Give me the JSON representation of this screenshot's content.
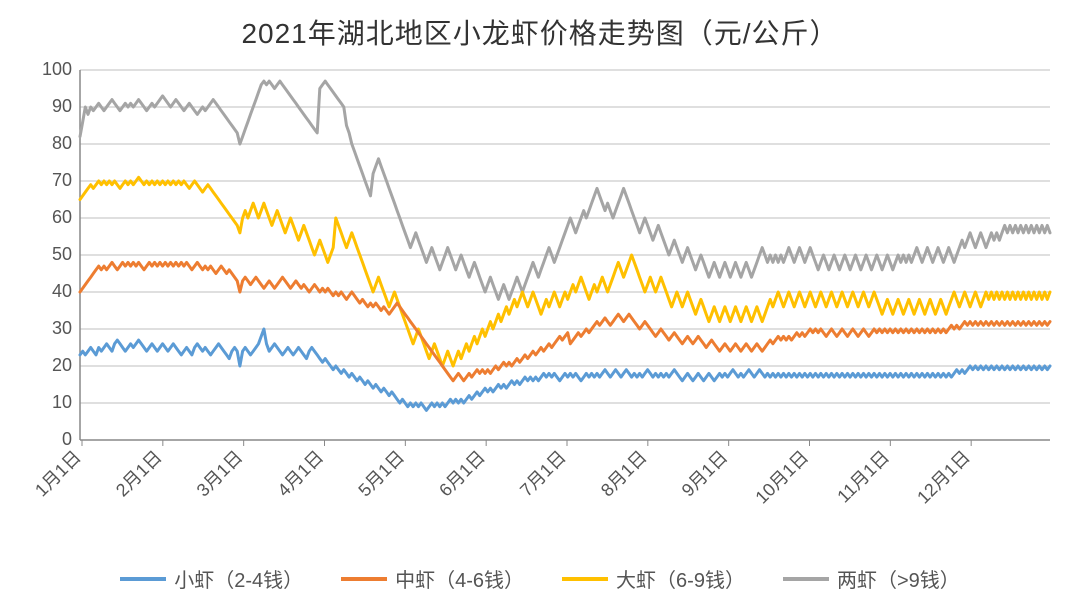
{
  "title": "2021年湖北地区小龙虾价格走势图（元/公斤）",
  "title_fontsize": 28,
  "background_color": "#ffffff",
  "grid_color": "#bfbfbf",
  "axis_color": "#888888",
  "text_color": "#555555",
  "ylim": [
    0,
    100
  ],
  "ytick_step": 10,
  "yticks": [
    0,
    10,
    20,
    30,
    40,
    50,
    60,
    70,
    80,
    90,
    100
  ],
  "x_labels": [
    "1月1日",
    "2月1日",
    "3月1日",
    "4月1日",
    "5月1日",
    "6月1日",
    "7月1日",
    "8月1日",
    "9月1日",
    "10月1日",
    "11月1日",
    "12月1日"
  ],
  "x_label_rotation_deg": 45,
  "line_width": 3,
  "legend": [
    {
      "label": "小虾（2-4钱）",
      "color": "#5b9bd5"
    },
    {
      "label": "中虾（4-6钱）",
      "color": "#ed7d31"
    },
    {
      "label": "大虾（6-9钱）",
      "color": "#ffc000"
    },
    {
      "label": "两虾（>9钱）",
      "color": "#a5a5a5"
    }
  ],
  "series": {
    "small": {
      "name": "小虾（2-4钱）",
      "color": "#5b9bd5",
      "values": [
        23,
        24,
        23,
        24,
        25,
        24,
        23,
        25,
        24,
        25,
        26,
        25,
        24,
        26,
        27,
        26,
        25,
        24,
        25,
        26,
        25,
        26,
        27,
        26,
        25,
        24,
        25,
        26,
        25,
        24,
        25,
        26,
        25,
        24,
        25,
        26,
        25,
        24,
        23,
        24,
        25,
        24,
        23,
        25,
        26,
        25,
        24,
        25,
        24,
        23,
        24,
        25,
        26,
        25,
        24,
        23,
        22,
        24,
        25,
        24,
        20,
        24,
        25,
        24,
        23,
        24,
        25,
        26,
        28,
        30,
        26,
        24,
        25,
        26,
        25,
        24,
        23,
        24,
        25,
        24,
        23,
        24,
        25,
        24,
        23,
        22,
        24,
        25,
        24,
        23,
        22,
        21,
        22,
        21,
        20,
        19,
        20,
        19,
        18,
        19,
        18,
        17,
        18,
        17,
        16,
        17,
        16,
        15,
        16,
        15,
        14,
        15,
        14,
        13,
        14,
        13,
        12,
        13,
        12,
        11,
        10,
        11,
        10,
        9,
        10,
        9,
        10,
        9,
        10,
        9,
        8,
        9,
        10,
        9,
        10,
        9,
        10,
        9,
        10,
        11,
        10,
        11,
        10,
        11,
        10,
        11,
        12,
        11,
        12,
        13,
        12,
        13,
        14,
        13,
        14,
        13,
        14,
        15,
        14,
        15,
        14,
        15,
        16,
        15,
        16,
        15,
        16,
        17,
        16,
        17,
        16,
        17,
        16,
        17,
        18,
        17,
        18,
        17,
        18,
        17,
        16,
        17,
        18,
        17,
        18,
        17,
        18,
        17,
        16,
        17,
        18,
        17,
        18,
        17,
        18,
        17,
        18,
        19,
        18,
        17,
        18,
        19,
        18,
        17,
        18,
        19,
        18,
        17,
        18,
        17,
        18,
        17,
        18,
        19,
        18,
        17,
        18,
        17,
        18,
        17,
        18,
        17,
        18,
        19,
        18,
        17,
        16,
        17,
        18,
        17,
        16,
        17,
        18,
        17,
        16,
        17,
        18,
        17,
        16,
        17,
        18,
        17,
        18,
        17,
        18,
        19,
        18,
        17,
        18,
        17,
        18,
        19,
        18,
        17,
        18,
        19,
        18,
        17,
        18,
        17,
        18,
        17,
        18,
        17,
        18,
        17,
        18,
        17,
        18,
        17,
        18,
        17,
        18,
        17,
        18,
        17,
        18,
        17,
        18,
        17,
        18,
        17,
        18,
        17,
        18,
        17,
        18,
        17,
        18,
        17,
        18,
        17,
        18,
        17,
        18,
        17,
        18,
        17,
        18,
        17,
        18,
        17,
        18,
        17,
        18,
        17,
        18,
        17,
        18,
        17,
        18,
        17,
        18,
        17,
        18,
        17,
        18,
        17,
        18,
        17,
        18,
        17,
        18,
        17,
        18,
        17,
        18,
        17,
        18,
        19,
        18,
        19,
        18,
        19,
        20,
        19,
        20,
        19,
        20,
        19,
        20,
        19,
        20,
        19,
        20,
        19,
        20,
        19,
        20,
        19,
        20,
        19,
        20,
        19,
        20,
        19,
        20,
        19,
        20,
        19,
        20,
        19,
        20,
        19,
        20
      ]
    },
    "medium": {
      "name": "中虾（4-6钱）",
      "color": "#ed7d31",
      "values": [
        40,
        41,
        42,
        43,
        44,
        45,
        46,
        47,
        46,
        47,
        46,
        47,
        48,
        47,
        46,
        47,
        48,
        47,
        48,
        47,
        48,
        47,
        48,
        47,
        46,
        47,
        48,
        47,
        48,
        47,
        48,
        47,
        48,
        47,
        48,
        47,
        48,
        47,
        48,
        47,
        48,
        47,
        46,
        47,
        48,
        47,
        46,
        47,
        46,
        47,
        46,
        45,
        46,
        47,
        46,
        45,
        46,
        45,
        44,
        43,
        40,
        43,
        44,
        43,
        42,
        43,
        44,
        43,
        42,
        41,
        42,
        43,
        42,
        41,
        42,
        43,
        44,
        43,
        42,
        41,
        42,
        43,
        42,
        41,
        42,
        41,
        40,
        41,
        42,
        41,
        40,
        41,
        40,
        41,
        40,
        39,
        40,
        39,
        40,
        39,
        38,
        39,
        40,
        39,
        38,
        37,
        38,
        37,
        36,
        37,
        36,
        37,
        36,
        35,
        36,
        35,
        34,
        35,
        36,
        37,
        36,
        35,
        34,
        33,
        32,
        31,
        30,
        29,
        28,
        27,
        26,
        25,
        24,
        23,
        22,
        21,
        20,
        19,
        18,
        17,
        16,
        17,
        18,
        17,
        16,
        17,
        18,
        17,
        18,
        19,
        18,
        19,
        18,
        19,
        18,
        19,
        20,
        19,
        20,
        21,
        20,
        21,
        20,
        21,
        22,
        21,
        22,
        23,
        22,
        23,
        24,
        23,
        24,
        25,
        24,
        25,
        26,
        25,
        26,
        27,
        28,
        27,
        28,
        29,
        26,
        27,
        28,
        29,
        28,
        29,
        30,
        29,
        30,
        31,
        32,
        31,
        32,
        33,
        32,
        31,
        32,
        33,
        34,
        33,
        32,
        33,
        34,
        33,
        32,
        31,
        30,
        31,
        32,
        31,
        30,
        29,
        28,
        29,
        30,
        29,
        28,
        27,
        28,
        29,
        28,
        27,
        26,
        27,
        28,
        27,
        26,
        27,
        28,
        27,
        26,
        25,
        26,
        27,
        26,
        25,
        24,
        25,
        26,
        25,
        24,
        25,
        26,
        25,
        24,
        25,
        26,
        25,
        24,
        25,
        26,
        25,
        24,
        25,
        26,
        27,
        26,
        27,
        28,
        27,
        28,
        27,
        28,
        27,
        28,
        29,
        28,
        29,
        28,
        29,
        30,
        29,
        30,
        29,
        30,
        29,
        28,
        29,
        30,
        29,
        28,
        29,
        30,
        29,
        28,
        29,
        30,
        29,
        28,
        29,
        30,
        29,
        28,
        29,
        30,
        29,
        30,
        29,
        30,
        29,
        30,
        29,
        30,
        29,
        30,
        29,
        30,
        29,
        30,
        29,
        30,
        29,
        30,
        29,
        30,
        29,
        30,
        29,
        30,
        29,
        30,
        29,
        30,
        31,
        30,
        31,
        30,
        31,
        32,
        31,
        32,
        31,
        32,
        31,
        32,
        31,
        32,
        31,
        32,
        31,
        32,
        31,
        32,
        31,
        32,
        31,
        32,
        31,
        32,
        31,
        32,
        31,
        32,
        31,
        32,
        31,
        32,
        31,
        32,
        31,
        32
      ]
    },
    "large": {
      "name": "大虾（6-9钱）",
      "color": "#ffc000",
      "values": [
        65,
        66,
        67,
        68,
        69,
        68,
        69,
        70,
        69,
        70,
        69,
        70,
        69,
        70,
        69,
        68,
        69,
        70,
        69,
        70,
        69,
        70,
        71,
        70,
        69,
        70,
        69,
        70,
        69,
        70,
        69,
        70,
        69,
        70,
        69,
        70,
        69,
        70,
        69,
        70,
        69,
        68,
        69,
        70,
        69,
        68,
        67,
        68,
        69,
        68,
        67,
        66,
        65,
        64,
        63,
        62,
        61,
        60,
        59,
        58,
        56,
        60,
        62,
        60,
        62,
        64,
        62,
        60,
        62,
        64,
        62,
        60,
        58,
        60,
        62,
        60,
        58,
        56,
        58,
        60,
        58,
        56,
        54,
        56,
        58,
        56,
        54,
        52,
        50,
        52,
        54,
        52,
        50,
        48,
        50,
        52,
        60,
        58,
        56,
        54,
        52,
        54,
        56,
        54,
        52,
        50,
        48,
        46,
        44,
        42,
        40,
        42,
        44,
        42,
        40,
        38,
        36,
        38,
        40,
        38,
        36,
        34,
        32,
        30,
        28,
        26,
        28,
        30,
        28,
        26,
        24,
        22,
        24,
        26,
        24,
        22,
        20,
        22,
        24,
        22,
        20,
        22,
        24,
        22,
        24,
        26,
        24,
        26,
        28,
        26,
        28,
        30,
        28,
        30,
        32,
        30,
        32,
        34,
        32,
        34,
        36,
        34,
        36,
        38,
        36,
        38,
        40,
        38,
        36,
        38,
        40,
        38,
        36,
        34,
        36,
        38,
        36,
        38,
        40,
        38,
        36,
        38,
        40,
        38,
        40,
        42,
        40,
        42,
        44,
        42,
        40,
        38,
        40,
        42,
        40,
        42,
        44,
        42,
        40,
        42,
        44,
        46,
        48,
        46,
        44,
        46,
        48,
        50,
        48,
        46,
        44,
        42,
        40,
        42,
        44,
        42,
        40,
        42,
        44,
        42,
        40,
        38,
        36,
        38,
        40,
        38,
        36,
        38,
        40,
        38,
        36,
        34,
        36,
        38,
        36,
        34,
        32,
        34,
        36,
        34,
        32,
        34,
        36,
        34,
        32,
        34,
        36,
        34,
        32,
        34,
        36,
        34,
        32,
        34,
        36,
        34,
        32,
        34,
        36,
        38,
        36,
        38,
        40,
        38,
        36,
        38,
        40,
        38,
        36,
        38,
        40,
        38,
        36,
        38,
        40,
        38,
        36,
        38,
        40,
        38,
        36,
        38,
        40,
        38,
        36,
        38,
        40,
        38,
        36,
        38,
        40,
        38,
        36,
        38,
        40,
        38,
        36,
        38,
        40,
        38,
        36,
        34,
        36,
        38,
        36,
        34,
        36,
        38,
        36,
        34,
        36,
        38,
        36,
        34,
        36,
        38,
        36,
        34,
        36,
        38,
        36,
        34,
        36,
        38,
        36,
        34,
        36,
        38,
        40,
        38,
        36,
        38,
        40,
        38,
        36,
        38,
        40,
        38,
        36,
        38,
        40,
        38,
        40,
        38,
        40,
        38,
        40,
        38,
        40,
        38,
        40,
        38,
        40,
        38,
        40,
        38,
        40,
        38,
        40,
        38,
        40,
        38,
        40,
        38,
        40
      ]
    },
    "jumbo": {
      "name": "两虾（>9钱）",
      "color": "#a5a5a5",
      "values": [
        82,
        86,
        90,
        88,
        90,
        89,
        90,
        91,
        90,
        89,
        90,
        91,
        92,
        91,
        90,
        89,
        90,
        91,
        90,
        91,
        90,
        91,
        92,
        91,
        90,
        89,
        90,
        91,
        90,
        91,
        92,
        93,
        92,
        91,
        90,
        91,
        92,
        91,
        90,
        89,
        90,
        91,
        90,
        89,
        88,
        89,
        90,
        89,
        90,
        91,
        92,
        91,
        90,
        89,
        88,
        87,
        86,
        85,
        84,
        83,
        80,
        82,
        84,
        86,
        88,
        90,
        92,
        94,
        96,
        97,
        96,
        97,
        96,
        95,
        96,
        97,
        96,
        95,
        94,
        93,
        92,
        91,
        90,
        89,
        88,
        87,
        86,
        85,
        84,
        83,
        95,
        96,
        97,
        96,
        95,
        94,
        93,
        92,
        91,
        90,
        85,
        83,
        80,
        78,
        76,
        74,
        72,
        70,
        68,
        66,
        72,
        74,
        76,
        74,
        72,
        70,
        68,
        66,
        64,
        62,
        60,
        58,
        56,
        54,
        52,
        54,
        56,
        54,
        52,
        50,
        48,
        50,
        52,
        50,
        48,
        46,
        48,
        50,
        52,
        50,
        48,
        46,
        48,
        50,
        48,
        46,
        44,
        46,
        48,
        46,
        44,
        42,
        40,
        42,
        44,
        42,
        40,
        38,
        40,
        42,
        40,
        38,
        40,
        42,
        44,
        42,
        40,
        42,
        44,
        46,
        48,
        46,
        44,
        46,
        48,
        50,
        52,
        50,
        48,
        50,
        52,
        54,
        56,
        58,
        60,
        58,
        56,
        58,
        60,
        62,
        60,
        62,
        64,
        66,
        68,
        66,
        64,
        62,
        64,
        62,
        60,
        62,
        64,
        66,
        68,
        66,
        64,
        62,
        60,
        58,
        56,
        58,
        60,
        58,
        56,
        54,
        56,
        58,
        56,
        54,
        52,
        50,
        52,
        54,
        52,
        50,
        48,
        50,
        52,
        50,
        48,
        46,
        48,
        50,
        48,
        46,
        44,
        46,
        48,
        46,
        44,
        46,
        48,
        46,
        44,
        46,
        48,
        46,
        44,
        46,
        48,
        46,
        44,
        46,
        48,
        50,
        52,
        50,
        48,
        50,
        48,
        50,
        48,
        50,
        48,
        50,
        52,
        50,
        48,
        50,
        52,
        50,
        48,
        50,
        52,
        50,
        48,
        46,
        48,
        50,
        48,
        46,
        48,
        50,
        48,
        46,
        48,
        50,
        48,
        46,
        48,
        50,
        48,
        46,
        48,
        50,
        48,
        46,
        48,
        50,
        48,
        46,
        48,
        50,
        48,
        46,
        48,
        50,
        48,
        50,
        48,
        50,
        48,
        50,
        52,
        50,
        48,
        50,
        52,
        50,
        48,
        50,
        52,
        50,
        48,
        50,
        52,
        50,
        48,
        50,
        52,
        54,
        52,
        54,
        56,
        54,
        52,
        54,
        56,
        54,
        52,
        54,
        56,
        54,
        56,
        54,
        56,
        58,
        56,
        58,
        56,
        58,
        56,
        58,
        56,
        58,
        56,
        58,
        56,
        58,
        56,
        58,
        56,
        58,
        56
      ]
    }
  }
}
